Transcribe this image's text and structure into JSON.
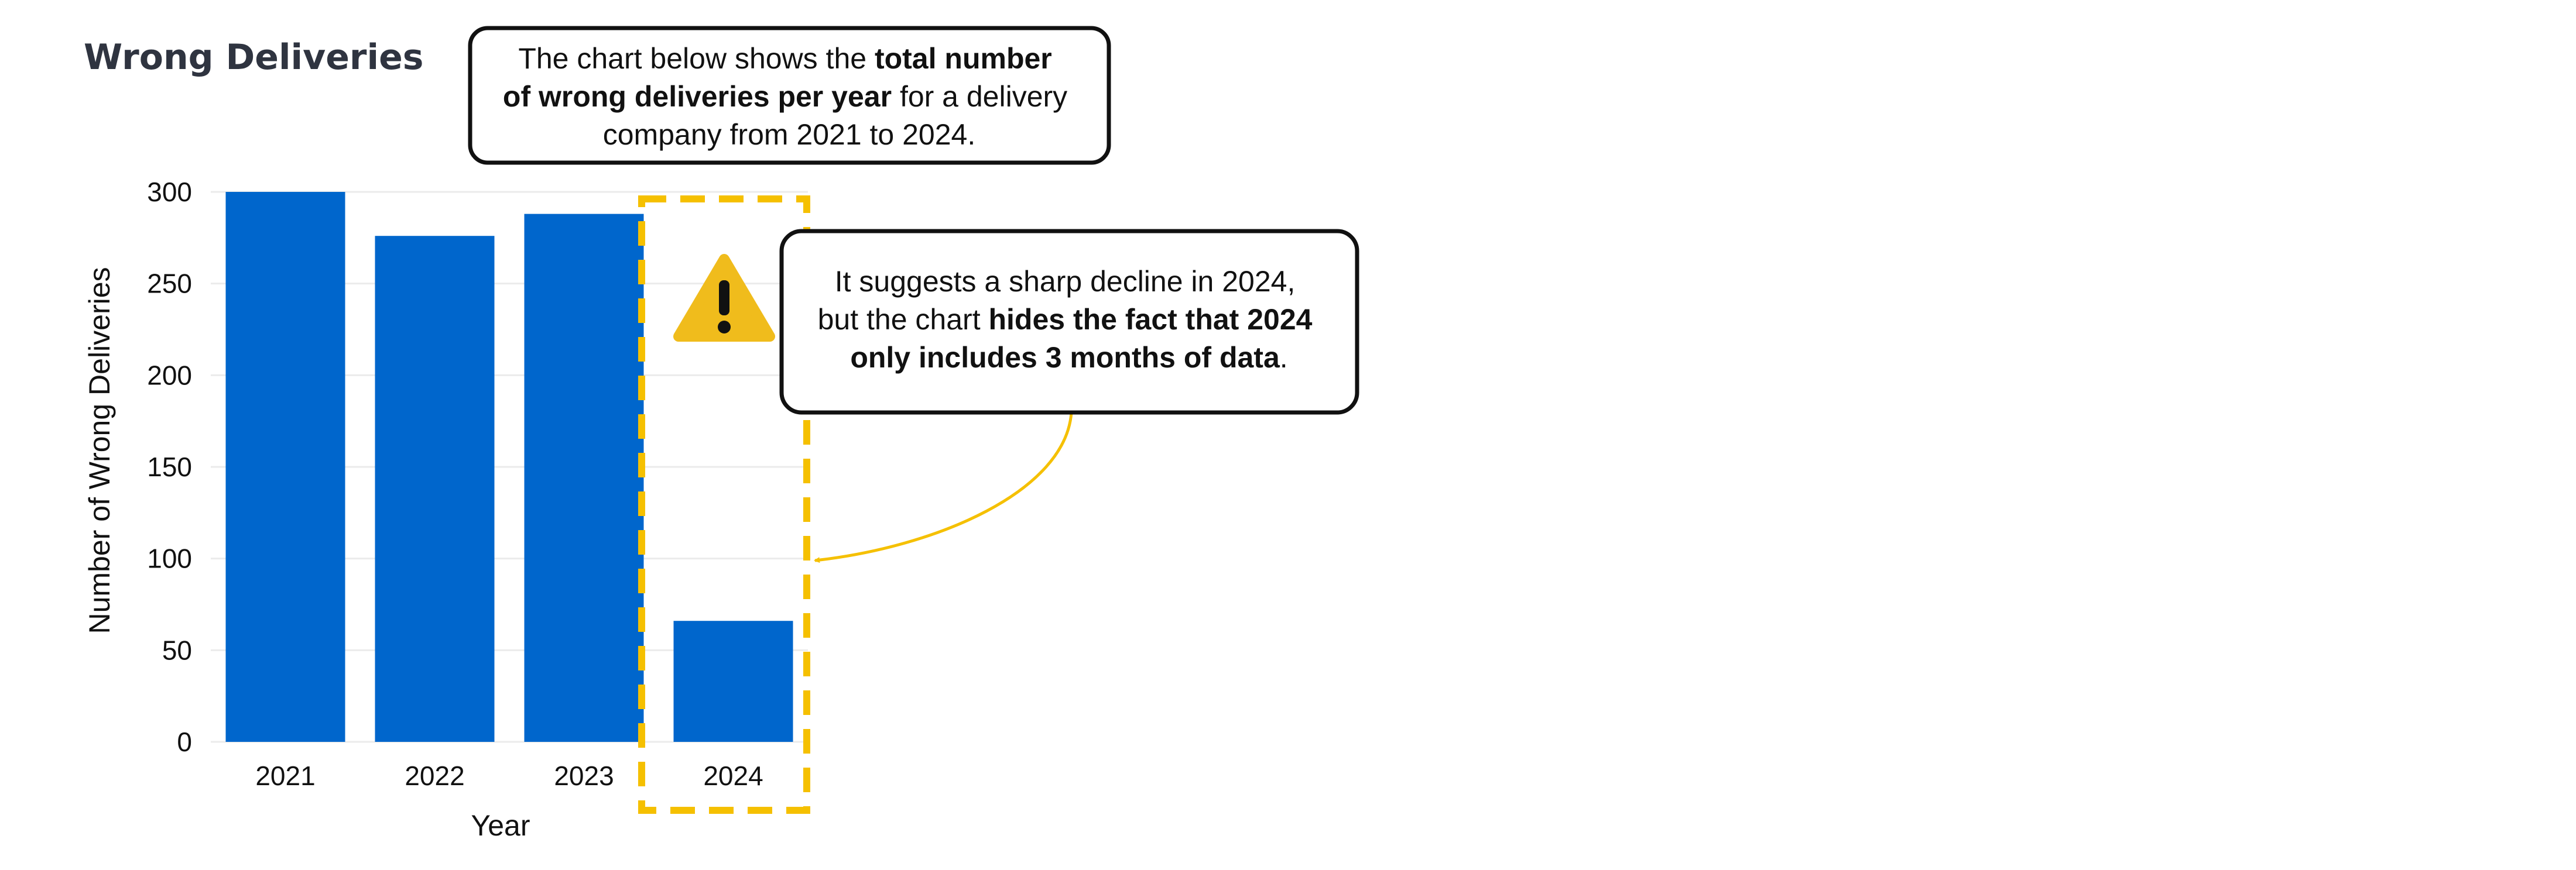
{
  "title": "Wrong Deliveries",
  "chart_data": {
    "type": "bar",
    "categories": [
      "2021",
      "2022",
      "2023",
      "2024"
    ],
    "values": [
      300,
      276,
      288,
      66
    ],
    "xlabel": "Year",
    "ylabel": "Number of Wrong Deliveries",
    "ylim": [
      0,
      300
    ],
    "yticks": [
      "0",
      "50",
      "100",
      "150",
      "200",
      "250",
      "300"
    ],
    "bar_color": "#0066cc",
    "grid": true,
    "highlight": {
      "category": "2024",
      "color": "#f5c000"
    }
  },
  "annotations": {
    "intro": {
      "line1_a": "The chart below shows the ",
      "line1_b": "total number",
      "line2_a": "of wrong deliveries per year",
      "line2_b": " for a delivery",
      "line3": "company from 2021 to 2024."
    },
    "warning": {
      "icon": "warning-icon",
      "line1": "It suggests a sharp decline in 2024,",
      "line2_a": "but the chart ",
      "line2_b": "hides the fact that 2024",
      "line3_a": "only includes 3 months of data",
      "line3_b": "."
    }
  }
}
